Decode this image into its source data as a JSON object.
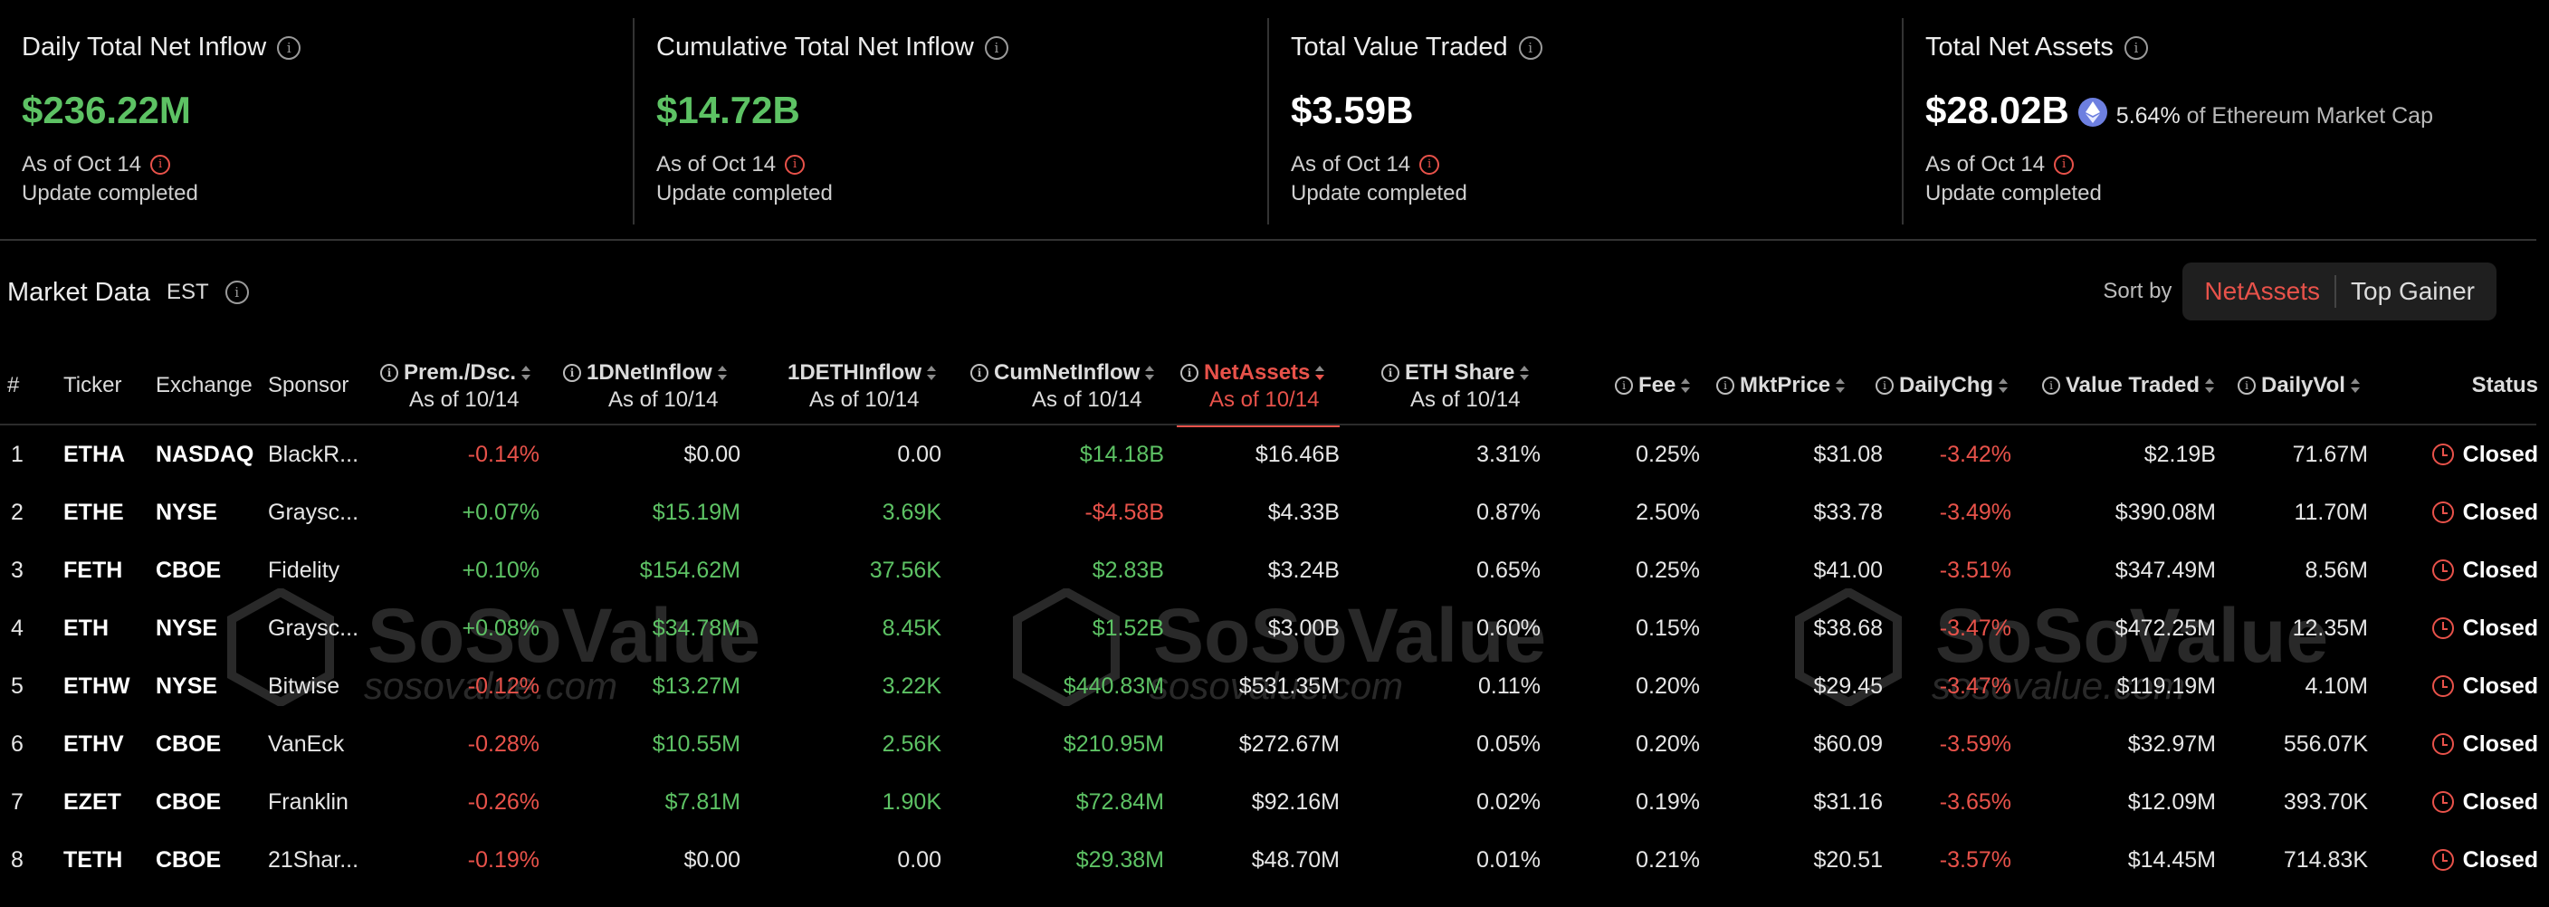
{
  "stats": [
    {
      "title": "Daily Total Net Inflow",
      "value": "$236.22M",
      "value_color": "#5dc264",
      "as_of": "As of Oct 14",
      "status": "Update completed"
    },
    {
      "title": "Cumulative Total Net Inflow",
      "value": "$14.72B",
      "value_color": "#5dc264",
      "as_of": "As of Oct 14",
      "status": "Update completed"
    },
    {
      "title": "Total Value Traded",
      "value": "$3.59B",
      "value_color": "#ffffff",
      "as_of": "As of Oct 14",
      "status": "Update completed"
    },
    {
      "title": "Total Net Assets",
      "value": "$28.02B",
      "value_color": "#ffffff",
      "mcap_pct": "5.64%",
      "mcap_text": "of Ethereum Market Cap",
      "as_of": "As of Oct 14",
      "status": "Update completed"
    }
  ],
  "market": {
    "title": "Market Data",
    "timezone": "EST",
    "sort_label": "Sort by",
    "sort_options": [
      "NetAssets",
      "Top Gainer"
    ],
    "sort_active": "NetAssets"
  },
  "columns": {
    "num": "#",
    "ticker": "Ticker",
    "exchange": "Exchange",
    "sponsor": "Sponsor",
    "prem": {
      "label": "Prem./Dsc.",
      "sub": "As of 10/14"
    },
    "inflow": {
      "label": "1DNetInflow",
      "sub": "As of 10/14"
    },
    "ethinflow": {
      "label": "1DETHInflow",
      "sub": "As of 10/14"
    },
    "cuminflow": {
      "label": "CumNetInflow",
      "sub": "As of 10/14"
    },
    "netassets": {
      "label": "NetAssets",
      "sub": "As of 10/14"
    },
    "ethshare": {
      "label": "ETH Share",
      "sub": "As of 10/14"
    },
    "fee": "Fee",
    "mktprice": "MktPrice",
    "dailychg": "DailyChg",
    "valuetraded": "Value Traded",
    "dailyvol": "DailyVol",
    "status": "Status"
  },
  "rows": [
    {
      "num": "1",
      "ticker": "ETHA",
      "exchange": "NASDAQ",
      "sponsor": "BlackR...",
      "prem": "-0.14%",
      "inflow": "$0.00",
      "ethinflow": "0.00",
      "cuminflow": "$14.18B",
      "netassets": "$16.46B",
      "ethshare": "3.31%",
      "fee": "0.25%",
      "mktprice": "$31.08",
      "dailychg": "-3.42%",
      "valuetraded": "$2.19B",
      "dailyvol": "71.67M",
      "status": "Closed"
    },
    {
      "num": "2",
      "ticker": "ETHE",
      "exchange": "NYSE",
      "sponsor": "Graysc...",
      "prem": "+0.07%",
      "inflow": "$15.19M",
      "ethinflow": "3.69K",
      "cuminflow": "-$4.58B",
      "netassets": "$4.33B",
      "ethshare": "0.87%",
      "fee": "2.50%",
      "mktprice": "$33.78",
      "dailychg": "-3.49%",
      "valuetraded": "$390.08M",
      "dailyvol": "11.70M",
      "status": "Closed"
    },
    {
      "num": "3",
      "ticker": "FETH",
      "exchange": "CBOE",
      "sponsor": "Fidelity",
      "prem": "+0.10%",
      "inflow": "$154.62M",
      "ethinflow": "37.56K",
      "cuminflow": "$2.83B",
      "netassets": "$3.24B",
      "ethshare": "0.65%",
      "fee": "0.25%",
      "mktprice": "$41.00",
      "dailychg": "-3.51%",
      "valuetraded": "$347.49M",
      "dailyvol": "8.56M",
      "status": "Closed"
    },
    {
      "num": "4",
      "ticker": "ETH",
      "exchange": "NYSE",
      "sponsor": "Graysc...",
      "prem": "+0.08%",
      "inflow": "$34.78M",
      "ethinflow": "8.45K",
      "cuminflow": "$1.52B",
      "netassets": "$3.00B",
      "ethshare": "0.60%",
      "fee": "0.15%",
      "mktprice": "$38.68",
      "dailychg": "-3.47%",
      "valuetraded": "$472.25M",
      "dailyvol": "12.35M",
      "status": "Closed"
    },
    {
      "num": "5",
      "ticker": "ETHW",
      "exchange": "NYSE",
      "sponsor": "Bitwise",
      "prem": "-0.12%",
      "inflow": "$13.27M",
      "ethinflow": "3.22K",
      "cuminflow": "$440.83M",
      "netassets": "$531.35M",
      "ethshare": "0.11%",
      "fee": "0.20%",
      "mktprice": "$29.45",
      "dailychg": "-3.47%",
      "valuetraded": "$119.19M",
      "dailyvol": "4.10M",
      "status": "Closed"
    },
    {
      "num": "6",
      "ticker": "ETHV",
      "exchange": "CBOE",
      "sponsor": "VanEck",
      "prem": "-0.28%",
      "inflow": "$10.55M",
      "ethinflow": "2.56K",
      "cuminflow": "$210.95M",
      "netassets": "$272.67M",
      "ethshare": "0.05%",
      "fee": "0.20%",
      "mktprice": "$60.09",
      "dailychg": "-3.59%",
      "valuetraded": "$32.97M",
      "dailyvol": "556.07K",
      "status": "Closed"
    },
    {
      "num": "7",
      "ticker": "EZET",
      "exchange": "CBOE",
      "sponsor": "Franklin",
      "prem": "-0.26%",
      "inflow": "$7.81M",
      "ethinflow": "1.90K",
      "cuminflow": "$72.84M",
      "netassets": "$92.16M",
      "ethshare": "0.02%",
      "fee": "0.19%",
      "mktprice": "$31.16",
      "dailychg": "-3.65%",
      "valuetraded": "$12.09M",
      "dailyvol": "393.70K",
      "status": "Closed"
    },
    {
      "num": "8",
      "ticker": "TETH",
      "exchange": "CBOE",
      "sponsor": "21Shar...",
      "prem": "-0.19%",
      "inflow": "$0.00",
      "ethinflow": "0.00",
      "cuminflow": "$29.38M",
      "netassets": "$48.70M",
      "ethshare": "0.01%",
      "fee": "0.21%",
      "mktprice": "$20.51",
      "dailychg": "-3.57%",
      "valuetraded": "$14.45M",
      "dailyvol": "714.83K",
      "status": "Closed"
    }
  ],
  "watermark": {
    "name": "SoSoValue",
    "url": "sosovalue.com"
  },
  "colors": {
    "positive": "#5dc264",
    "negative": "#e8524a",
    "accent": "#e8524a",
    "background": "#000000"
  }
}
